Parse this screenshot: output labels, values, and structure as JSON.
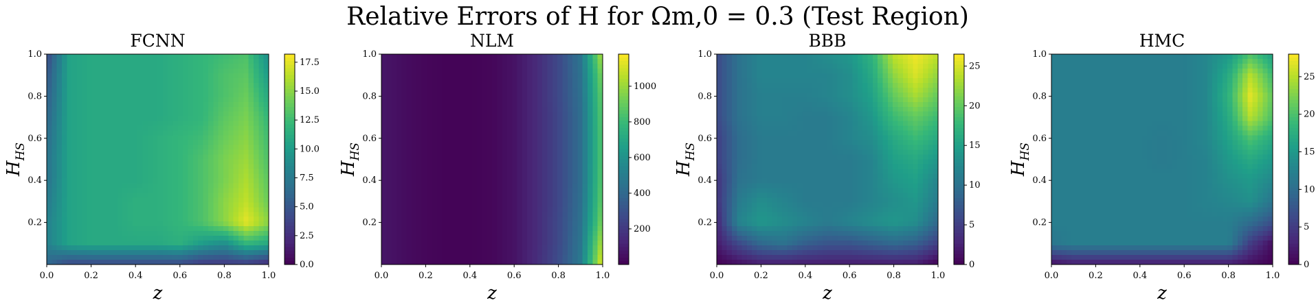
{
  "figure": {
    "title": "Relative Errors of H for Ωm,0 = 0.3 (Test Region)"
  },
  "colormap": [
    "#440154",
    "#482878",
    "#3e4989",
    "#31688e",
    "#26828e",
    "#1f9e89",
    "#35b779",
    "#6ece58",
    "#b5de2b",
    "#fde725"
  ],
  "chart_data": [
    {
      "type": "heatmap",
      "title": "FCNN",
      "xlabel": "z",
      "ylabel": "HHS",
      "xlim": [
        0,
        1
      ],
      "ylim": [
        0,
        1
      ],
      "x_ticks": [
        "0.0",
        "0.2",
        "0.4",
        "0.6",
        "0.8",
        "1.0"
      ],
      "y_ticks": [
        "0.2",
        "0.4",
        "0.6",
        "0.8",
        "1.0"
      ],
      "colorbar": {
        "range": [
          0,
          18.2
        ],
        "ticks": [
          "0.0",
          "2.5",
          "5.0",
          "7.5",
          "10.0",
          "12.5",
          "15.0",
          "17.5"
        ]
      },
      "grid_x": [
        0.0,
        0.1,
        0.2,
        0.3,
        0.4,
        0.5,
        0.6,
        0.7,
        0.8,
        0.9,
        1.0
      ],
      "grid_y": [
        1.0,
        0.9,
        0.8,
        0.7,
        0.6,
        0.5,
        0.4,
        0.3,
        0.2,
        0.1,
        0.0
      ],
      "z_values": [
        [
          4,
          10.5,
          11,
          11,
          11,
          11,
          11.5,
          12,
          12.5,
          13,
          9
        ],
        [
          5,
          10.5,
          11,
          11,
          11,
          11,
          11.5,
          12,
          13,
          13.5,
          10
        ],
        [
          5.5,
          10.5,
          11,
          11,
          11,
          11,
          11.5,
          12,
          13,
          14,
          11
        ],
        [
          6,
          10.5,
          11,
          11,
          11,
          11,
          11.5,
          12,
          13.5,
          14.5,
          12
        ],
        [
          6.5,
          10.5,
          11,
          11,
          11,
          11.5,
          12,
          12.5,
          14,
          15,
          12.5
        ],
        [
          7,
          10.5,
          11,
          11,
          11,
          11.5,
          12,
          13,
          14.5,
          15.5,
          13
        ],
        [
          7,
          10.5,
          11,
          11,
          11,
          11.5,
          12,
          13,
          14.5,
          16,
          13.5
        ],
        [
          7.5,
          10.5,
          11,
          11,
          11.5,
          11.5,
          12,
          13,
          15,
          16.5,
          14
        ],
        [
          8,
          10.5,
          11,
          11,
          11.5,
          11.5,
          12,
          13,
          15,
          17.5,
          15
        ],
        [
          8,
          10.5,
          11,
          11,
          11,
          11,
          11.5,
          10,
          9,
          12,
          11
        ],
        [
          6,
          4,
          4,
          4,
          4,
          4,
          4,
          3,
          3,
          3,
          2
        ]
      ]
    },
    {
      "type": "heatmap",
      "title": "NLM",
      "xlabel": "z",
      "ylabel": "HHS",
      "xlim": [
        0,
        1
      ],
      "ylim": [
        0,
        1
      ],
      "x_ticks": [
        "0.0",
        "0.2",
        "0.4",
        "0.6",
        "0.8",
        "1.0"
      ],
      "y_ticks": [
        "0.2",
        "0.4",
        "0.6",
        "0.8",
        "1.0"
      ],
      "colorbar": {
        "range": [
          0,
          1180
        ],
        "ticks": [
          "200",
          "400",
          "600",
          "800",
          "1000"
        ]
      },
      "grid_x": [
        0.0,
        0.1,
        0.2,
        0.3,
        0.4,
        0.5,
        0.6,
        0.7,
        0.8,
        0.9,
        1.0
      ],
      "grid_y": [
        1.0,
        0.9,
        0.8,
        0.7,
        0.6,
        0.5,
        0.4,
        0.3,
        0.2,
        0.1,
        0.0
      ],
      "z_values": [
        [
          70,
          40,
          20,
          10,
          10,
          20,
          60,
          140,
          260,
          450,
          1050
        ],
        [
          70,
          40,
          20,
          10,
          10,
          20,
          60,
          140,
          260,
          440,
          950
        ],
        [
          70,
          40,
          20,
          10,
          10,
          20,
          60,
          140,
          260,
          430,
          900
        ],
        [
          70,
          40,
          20,
          10,
          10,
          20,
          60,
          140,
          250,
          420,
          880
        ],
        [
          70,
          40,
          20,
          10,
          10,
          20,
          60,
          140,
          250,
          420,
          870
        ],
        [
          70,
          40,
          20,
          10,
          10,
          20,
          60,
          140,
          250,
          420,
          870
        ],
        [
          70,
          40,
          20,
          10,
          10,
          20,
          60,
          140,
          250,
          420,
          880
        ],
        [
          70,
          40,
          20,
          10,
          10,
          20,
          60,
          140,
          250,
          430,
          900
        ],
        [
          70,
          40,
          20,
          10,
          10,
          20,
          60,
          140,
          260,
          440,
          950
        ],
        [
          70,
          40,
          20,
          10,
          10,
          20,
          60,
          140,
          260,
          460,
          1050
        ],
        [
          70,
          40,
          20,
          10,
          10,
          20,
          60,
          150,
          280,
          480,
          1150
        ]
      ]
    },
    {
      "type": "heatmap",
      "title": "BBB",
      "xlabel": "z",
      "ylabel": "HHS",
      "xlim": [
        0,
        1
      ],
      "ylim": [
        0,
        1
      ],
      "x_ticks": [
        "0.0",
        "0.2",
        "0.4",
        "0.6",
        "0.8",
        "1.0"
      ],
      "y_ticks": [
        "0.2",
        "0.4",
        "0.6",
        "0.8",
        "1.0"
      ],
      "colorbar": {
        "range": [
          0,
          26.5
        ],
        "ticks": [
          "0",
          "5",
          "10",
          "15",
          "20",
          "25"
        ]
      },
      "grid_x": [
        0.0,
        0.1,
        0.2,
        0.3,
        0.4,
        0.5,
        0.6,
        0.7,
        0.8,
        0.9,
        1.0
      ],
      "grid_y": [
        1.0,
        0.9,
        0.8,
        0.7,
        0.6,
        0.5,
        0.4,
        0.3,
        0.2,
        0.1,
        0.0
      ],
      "z_values": [
        [
          6,
          10,
          12,
          12,
          12,
          13,
          14,
          17,
          24,
          26,
          24
        ],
        [
          6,
          10,
          12,
          12,
          12,
          12,
          13,
          16,
          22,
          25,
          22
        ],
        [
          6,
          10,
          11.5,
          11.5,
          11.5,
          12,
          13,
          15,
          20,
          23,
          20
        ],
        [
          6,
          10,
          11.5,
          11.5,
          11,
          11,
          12,
          14,
          18,
          20,
          18
        ],
        [
          5,
          9.5,
          11,
          11,
          11,
          11,
          12,
          13,
          16,
          18,
          16
        ],
        [
          5,
          9.5,
          11,
          11,
          11,
          11,
          11,
          12,
          15,
          16,
          14
        ],
        [
          4,
          10,
          11,
          11,
          11,
          11,
          11,
          12,
          14,
          15,
          12
        ],
        [
          4,
          11,
          13,
          12,
          11,
          11,
          11,
          12,
          13,
          14,
          11
        ],
        [
          3,
          12,
          14,
          13,
          12,
          11,
          12,
          13,
          14,
          13,
          9
        ],
        [
          2,
          6,
          9,
          10,
          8,
          7,
          7,
          8,
          9,
          8,
          5
        ],
        [
          0,
          1,
          2,
          2,
          2,
          2,
          2,
          2,
          2,
          2,
          0
        ]
      ]
    },
    {
      "type": "heatmap",
      "title": "HMC",
      "xlabel": "z",
      "ylabel": "HHS",
      "xlim": [
        0,
        1
      ],
      "ylim": [
        0,
        1
      ],
      "x_ticks": [
        "0.0",
        "0.2",
        "0.4",
        "0.6",
        "0.8",
        "1.0"
      ],
      "y_ticks": [
        "0.2",
        "0.4",
        "0.6",
        "0.8",
        "1.0"
      ],
      "colorbar": {
        "range": [
          0,
          28
        ],
        "ticks": [
          "0",
          "5",
          "10",
          "15",
          "20",
          "25"
        ]
      },
      "grid_x": [
        0.0,
        0.1,
        0.2,
        0.3,
        0.4,
        0.5,
        0.6,
        0.7,
        0.8,
        0.9,
        1.0
      ],
      "grid_y": [
        1.0,
        0.9,
        0.8,
        0.7,
        0.6,
        0.5,
        0.4,
        0.3,
        0.2,
        0.1,
        0.0
      ],
      "z_values": [
        [
          12,
          12,
          12,
          12,
          12,
          12,
          12,
          13,
          15,
          20,
          16
        ],
        [
          12,
          12,
          12,
          12,
          12,
          12,
          12,
          13,
          17,
          25,
          19
        ],
        [
          12,
          12,
          12,
          12,
          12,
          12,
          12,
          13,
          18,
          27,
          21
        ],
        [
          12,
          12,
          12,
          12,
          12,
          12,
          12,
          13,
          17,
          25,
          20
        ],
        [
          12,
          12,
          12,
          12,
          12,
          11.5,
          12,
          13,
          16,
          20,
          17
        ],
        [
          12,
          12,
          12,
          12,
          12,
          11.5,
          12,
          12.5,
          15,
          17,
          15
        ],
        [
          12,
          12,
          12,
          12,
          12,
          12,
          12,
          12.5,
          14,
          15,
          13
        ],
        [
          12,
          12,
          12,
          12,
          12,
          12,
          12,
          12.5,
          13,
          14,
          11
        ],
        [
          12,
          12,
          12,
          12,
          12,
          12,
          12,
          12,
          12,
          10,
          7
        ],
        [
          11,
          12,
          12,
          12,
          12,
          12,
          12,
          12,
          12,
          5,
          1
        ],
        [
          1,
          2,
          2,
          2,
          2,
          2,
          2,
          2,
          2,
          1,
          0
        ]
      ]
    }
  ]
}
